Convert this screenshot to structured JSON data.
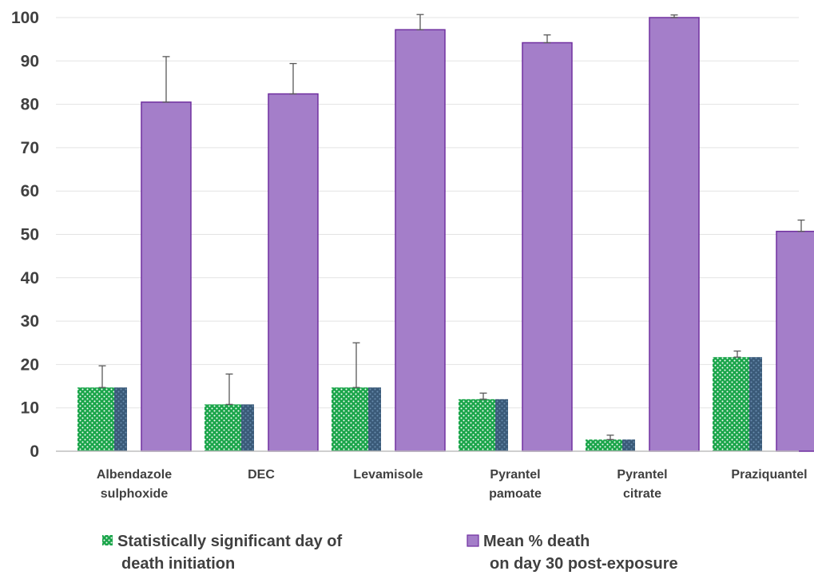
{
  "chart_data": {
    "type": "bar",
    "categories": [
      [
        "Albendazole",
        "sulphoxide"
      ],
      [
        "DEC"
      ],
      [
        "Levamisole"
      ],
      [
        "Pyrantel",
        "pamoate"
      ],
      [
        "Pyrantel",
        "citrate"
      ],
      [
        "Praziquantel"
      ]
    ],
    "series": [
      {
        "legend_lines": [
          "Statistically significant day of",
          "death initiation"
        ],
        "values": [
          14.7,
          10.8,
          14.7,
          12.0,
          2.7,
          21.7
        ],
        "errors": [
          5.0,
          7.0,
          10.3,
          1.4,
          1.0,
          1.4
        ],
        "color": "#1aa54a",
        "pattern_color": "#ffffff",
        "shadow_color": "#3a5a78"
      },
      {
        "legend_lines": [
          "Mean % death",
          "on day 30 post-exposure"
        ],
        "values": [
          80.5,
          82.4,
          97.2,
          94.2,
          100,
          50.7
        ],
        "errors": [
          10.5,
          7.0,
          3.5,
          1.8,
          0.6,
          2.6
        ],
        "color": "#a47ec9",
        "border_color": "#7030a0"
      }
    ],
    "ylim": [
      0,
      100
    ],
    "yticks": [
      0,
      10,
      20,
      30,
      40,
      50,
      60,
      70,
      80,
      90,
      100
    ],
    "grid": true,
    "legend_position": "bottom"
  }
}
